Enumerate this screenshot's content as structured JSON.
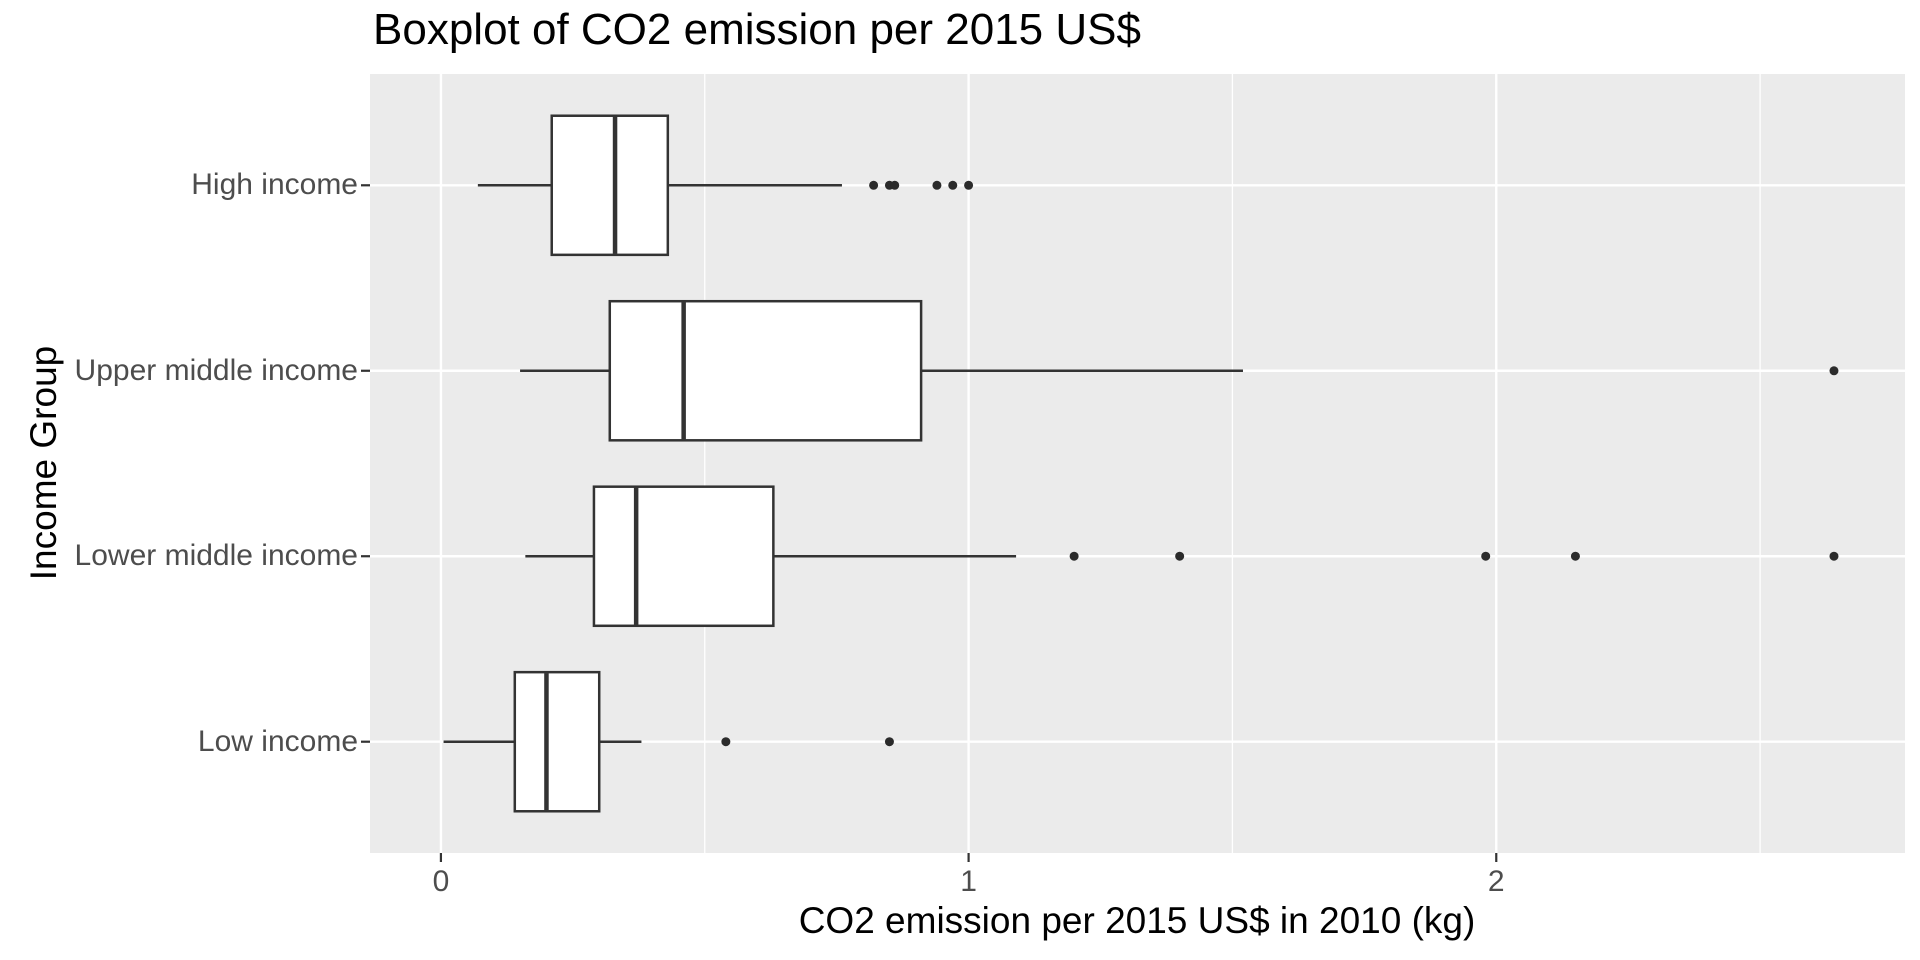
{
  "chart_data": {
    "type": "boxplot",
    "orientation": "horizontal",
    "title": "Boxplot of CO2 emission per 2015 US$",
    "xlabel": "CO2 emission per 2015 US$ in 2010 (kg)",
    "ylabel": "Income Group",
    "xlim": [
      -0.1344,
      2.7746
    ],
    "x_ticks": [
      0,
      1,
      2
    ],
    "x_minor_gridlines": [
      0.5,
      1.5,
      2.5
    ],
    "grid": "on",
    "categories": [
      "High income",
      "Upper middle income",
      "Lower middle income",
      "Low income"
    ],
    "series": [
      {
        "category": "High income",
        "whisker_low": 0.07,
        "q1": 0.21,
        "median": 0.33,
        "q3": 0.43,
        "whisker_high": 0.76,
        "outliers": [
          0.82,
          0.85,
          0.86,
          0.94,
          0.97,
          1.0
        ]
      },
      {
        "category": "Upper middle income",
        "whisker_low": 0.15,
        "q1": 0.32,
        "median": 0.46,
        "q3": 0.91,
        "whisker_high": 1.52,
        "outliers": [
          2.64
        ]
      },
      {
        "category": "Lower middle income",
        "whisker_low": 0.16,
        "q1": 0.29,
        "median": 0.37,
        "q3": 0.63,
        "whisker_high": 1.09,
        "outliers": [
          1.2,
          1.4,
          1.98,
          2.15,
          2.64
        ]
      },
      {
        "category": "Low income",
        "whisker_low": 0.005,
        "q1": 0.14,
        "median": 0.2,
        "q3": 0.3,
        "whisker_high": 0.38,
        "outliers": [
          0.54,
          0.85
        ]
      }
    ],
    "colors": {
      "panel_bg": "#EBEBEB",
      "gridline": "#FFFFFF",
      "box_stroke": "#333333",
      "box_fill": "#FFFFFF",
      "outlier": "#2B2B2B",
      "tick_mark": "#333333",
      "axis_text": "#4D4D4D",
      "title_text": "#000000"
    }
  }
}
